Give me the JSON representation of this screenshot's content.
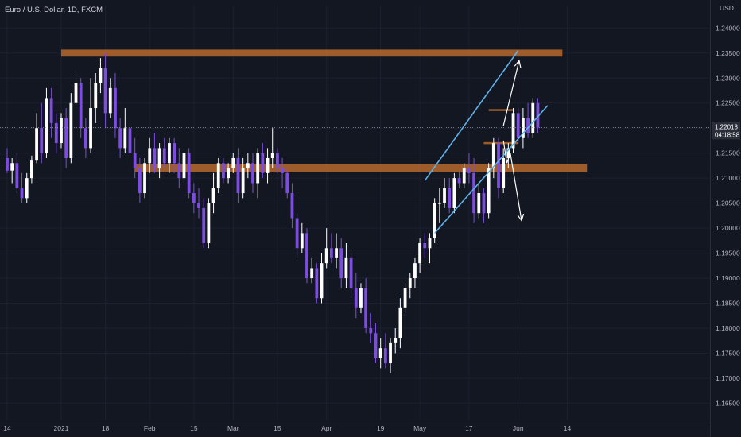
{
  "header": {
    "title": "Euro / U.S. Dollar, 1D, FXCM"
  },
  "colors": {
    "background": "#131722",
    "up_candle": "#ffffff",
    "down_candle": "#7c4dde",
    "zone": "#b9682d",
    "channel": "#5fb2ec",
    "arrow": "#ffffff",
    "axis_text": "#b2b5be"
  },
  "chart_data": {
    "type": "candlestick",
    "title": "Euro / U.S. Dollar, 1D, FXCM",
    "unit_label": "USD",
    "y_axis": {
      "ylim": [
        1.163,
        1.2445
      ],
      "ticks": [
        "1.16500",
        "1.17000",
        "1.17500",
        "1.18000",
        "1.18500",
        "1.19000",
        "1.19500",
        "1.20000",
        "1.20500",
        "1.21000",
        "1.21500",
        "1.22000",
        "1.22500",
        "1.23000",
        "1.23500",
        "1.24000"
      ]
    },
    "x_axis": {
      "tick_labels": [
        "14",
        "2021",
        "18",
        "Feb",
        "15",
        "Mar",
        "15",
        "Apr",
        "19",
        "May",
        "17",
        "Jun",
        "14"
      ],
      "tick_bar_index": [
        0,
        11,
        20,
        29,
        38,
        46,
        55,
        65,
        76,
        84,
        94,
        104,
        114
      ]
    },
    "current_price": {
      "value": "1.22013",
      "countdown": "04:18:58"
    },
    "candles": [
      [
        1.214,
        1.216,
        1.211,
        1.2115
      ],
      [
        1.2115,
        1.214,
        1.209,
        1.213
      ],
      [
        1.213,
        1.215,
        1.207,
        1.208
      ],
      [
        1.208,
        1.211,
        1.205,
        1.206
      ],
      [
        1.206,
        1.211,
        1.205,
        1.21
      ],
      [
        1.21,
        1.2145,
        1.209,
        1.2135
      ],
      [
        1.2135,
        1.223,
        1.213,
        1.22
      ],
      [
        1.22,
        1.225,
        1.213,
        1.215
      ],
      [
        1.215,
        1.228,
        1.214,
        1.226
      ],
      [
        1.226,
        1.228,
        1.218,
        1.221
      ],
      [
        1.221,
        1.223,
        1.215,
        1.217
      ],
      [
        1.217,
        1.223,
        1.216,
        1.222
      ],
      [
        1.222,
        1.224,
        1.212,
        1.214
      ],
      [
        1.214,
        1.227,
        1.213,
        1.225
      ],
      [
        1.225,
        1.231,
        1.224,
        1.229
      ],
      [
        1.229,
        1.23,
        1.218,
        1.22
      ],
      [
        1.22,
        1.222,
        1.214,
        1.216
      ],
      [
        1.216,
        1.23,
        1.215,
        1.224
      ],
      [
        1.224,
        1.231,
        1.221,
        1.229
      ],
      [
        1.229,
        1.234,
        1.227,
        1.232
      ],
      [
        1.232,
        1.235,
        1.22,
        1.223
      ],
      [
        1.223,
        1.23,
        1.222,
        1.228
      ],
      [
        1.228,
        1.231,
        1.218,
        1.22
      ],
      [
        1.22,
        1.222,
        1.214,
        1.216
      ],
      [
        1.216,
        1.224,
        1.215,
        1.22
      ],
      [
        1.22,
        1.221,
        1.214,
        1.215
      ],
      [
        1.215,
        1.218,
        1.21,
        1.212
      ],
      [
        1.212,
        1.214,
        1.205,
        1.207
      ],
      [
        1.207,
        1.214,
        1.206,
        1.213
      ],
      [
        1.213,
        1.218,
        1.211,
        1.216
      ],
      [
        1.216,
        1.219,
        1.211,
        1.212
      ],
      [
        1.212,
        1.217,
        1.21,
        1.216
      ],
      [
        1.216,
        1.218,
        1.212,
        1.213
      ],
      [
        1.213,
        1.218,
        1.211,
        1.217
      ],
      [
        1.217,
        1.218,
        1.211,
        1.213
      ],
      [
        1.213,
        1.216,
        1.208,
        1.21
      ],
      [
        1.21,
        1.216,
        1.209,
        1.215
      ],
      [
        1.215,
        1.216,
        1.206,
        1.207
      ],
      [
        1.207,
        1.209,
        1.203,
        1.205
      ],
      [
        1.205,
        1.208,
        1.202,
        1.204
      ],
      [
        1.204,
        1.206,
        1.196,
        1.197
      ],
      [
        1.197,
        1.206,
        1.196,
        1.205
      ],
      [
        1.205,
        1.211,
        1.203,
        1.208
      ],
      [
        1.208,
        1.214,
        1.207,
        1.213
      ],
      [
        1.213,
        1.214,
        1.209,
        1.21
      ],
      [
        1.21,
        1.213,
        1.209,
        1.212
      ],
      [
        1.212,
        1.215,
        1.211,
        1.214
      ],
      [
        1.214,
        1.216,
        1.205,
        1.207
      ],
      [
        1.207,
        1.214,
        1.206,
        1.212
      ],
      [
        1.212,
        1.215,
        1.21,
        1.213
      ],
      [
        1.213,
        1.215,
        1.207,
        1.209
      ],
      [
        1.209,
        1.216,
        1.206,
        1.215
      ],
      [
        1.215,
        1.217,
        1.21,
        1.211
      ],
      [
        1.211,
        1.216,
        1.209,
        1.214
      ],
      [
        1.214,
        1.22,
        1.212,
        1.215
      ],
      [
        1.215,
        1.216,
        1.211,
        1.212
      ],
      [
        1.212,
        1.214,
        1.208,
        1.211
      ],
      [
        1.211,
        1.212,
        1.206,
        1.207
      ],
      [
        1.207,
        1.209,
        1.2,
        1.202
      ],
      [
        1.202,
        1.203,
        1.194,
        1.196
      ],
      [
        1.196,
        1.201,
        1.195,
        1.199
      ],
      [
        1.199,
        1.2,
        1.189,
        1.19
      ],
      [
        1.19,
        1.194,
        1.189,
        1.192
      ],
      [
        1.192,
        1.193,
        1.185,
        1.186
      ],
      [
        1.186,
        1.195,
        1.185,
        1.193
      ],
      [
        1.193,
        1.2,
        1.192,
        1.196
      ],
      [
        1.196,
        1.199,
        1.193,
        1.194
      ],
      [
        1.194,
        1.199,
        1.192,
        1.196
      ],
      [
        1.196,
        1.198,
        1.188,
        1.19
      ],
      [
        1.19,
        1.197,
        1.188,
        1.194
      ],
      [
        1.194,
        1.195,
        1.186,
        1.188
      ],
      [
        1.188,
        1.191,
        1.182,
        1.184
      ],
      [
        1.184,
        1.189,
        1.183,
        1.188
      ],
      [
        1.188,
        1.19,
        1.179,
        1.18
      ],
      [
        1.18,
        1.183,
        1.177,
        1.179
      ],
      [
        1.179,
        1.181,
        1.173,
        1.174
      ],
      [
        1.174,
        1.178,
        1.172,
        1.176
      ],
      [
        1.176,
        1.179,
        1.172,
        1.173
      ],
      [
        1.173,
        1.178,
        1.171,
        1.177
      ],
      [
        1.177,
        1.18,
        1.175,
        1.178
      ],
      [
        1.178,
        1.186,
        1.176,
        1.184
      ],
      [
        1.184,
        1.189,
        1.183,
        1.188
      ],
      [
        1.188,
        1.191,
        1.186,
        1.19
      ],
      [
        1.19,
        1.194,
        1.188,
        1.193
      ],
      [
        1.193,
        1.198,
        1.191,
        1.197
      ],
      [
        1.197,
        1.199,
        1.194,
        1.196
      ],
      [
        1.196,
        1.199,
        1.193,
        1.198
      ],
      [
        1.198,
        1.206,
        1.197,
        1.205
      ],
      [
        1.205,
        1.208,
        1.201,
        1.205
      ],
      [
        1.205,
        1.21,
        1.204,
        1.208
      ],
      [
        1.208,
        1.21,
        1.203,
        1.204
      ],
      [
        1.204,
        1.211,
        1.203,
        1.21
      ],
      [
        1.21,
        1.212,
        1.208,
        1.209
      ],
      [
        1.209,
        1.213,
        1.208,
        1.212
      ],
      [
        1.212,
        1.215,
        1.209,
        1.211
      ],
      [
        1.211,
        1.214,
        1.201,
        1.203
      ],
      [
        1.203,
        1.209,
        1.202,
        1.207
      ],
      [
        1.207,
        1.208,
        1.201,
        1.203
      ],
      [
        1.203,
        1.213,
        1.202,
        1.212
      ],
      [
        1.212,
        1.218,
        1.21,
        1.217
      ],
      [
        1.217,
        1.218,
        1.206,
        1.208
      ],
      [
        1.208,
        1.216,
        1.207,
        1.214
      ],
      [
        1.214,
        1.217,
        1.212,
        1.216
      ],
      [
        1.216,
        1.224,
        1.215,
        1.223
      ],
      [
        1.223,
        1.224,
        1.217,
        1.218
      ],
      [
        1.218,
        1.224,
        1.216,
        1.222
      ],
      [
        1.222,
        1.225,
        1.218,
        1.219
      ],
      [
        1.219,
        1.226,
        1.218,
        1.225
      ],
      [
        1.225,
        1.226,
        1.219,
        1.2201
      ]
    ],
    "zones": [
      {
        "low": 1.2343,
        "high": 1.2357,
        "from_bar": 11,
        "to_bar": 113
      },
      {
        "low": 1.2112,
        "high": 1.2128,
        "from_bar": 26,
        "to_bar": 118
      },
      {
        "low": 1.2168,
        "high": 1.2172,
        "from_bar": 97,
        "to_bar": 104
      },
      {
        "low": 1.2234,
        "high": 1.2238,
        "from_bar": 98,
        "to_bar": 103
      }
    ],
    "channel": [
      {
        "from": [
          85,
          1.2095
        ],
        "to": [
          104,
          1.2355
        ]
      },
      {
        "from": [
          87,
          1.199
        ],
        "to": [
          110,
          1.2245
        ]
      }
    ],
    "arrows": [
      {
        "points": [
          [
            101,
            1.2205
          ],
          [
            104.2,
            1.2335
          ]
        ]
      },
      {
        "points": [
          [
            101,
            1.2175
          ],
          [
            101.7,
            1.213
          ],
          [
            102.4,
            1.215
          ],
          [
            104.7,
            1.2015
          ]
        ]
      }
    ]
  }
}
